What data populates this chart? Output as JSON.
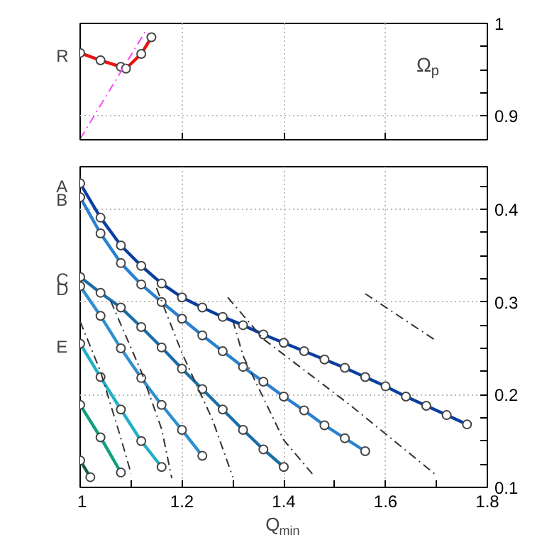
{
  "chart_data": [
    {
      "type": "line",
      "ylabel": "Ω$_{p}$",
      "xlim": [
        1,
        1.8
      ],
      "ylim": [
        0.874,
        1.0
      ],
      "xticks": [
        1,
        1.2,
        1.4,
        1.6,
        1.8
      ],
      "yticks": [
        0.9,
        {
          "value": 0.925,
          "label": null
        },
        {
          "value": 0.95,
          "label": null
        },
        {
          "value": 0.975,
          "label": null
        },
        1
      ],
      "tick_labels": "y",
      "grid": true,
      "annotations": [
        "R"
      ],
      "series": [
        {
          "color": "#ee1111",
          "marker": "circle",
          "line_style": "solid",
          "x": [
            1.0,
            1.04,
            1.08,
            1.09,
            1.12,
            1.14
          ],
          "values": [
            0.968,
            0.96,
            0.953,
            0.951,
            0.967,
            0.985
          ]
        },
        {
          "color": "#ff44ff",
          "marker": "none",
          "line_style": "dashed",
          "x": [
            1.0,
            1.13
          ],
          "values": [
            0.875,
            0.993
          ]
        }
      ]
    },
    {
      "type": "line",
      "xlabel": "Q$_{min}$",
      "xlim": [
        1,
        1.8
      ],
      "ylim": [
        0.1,
        0.446
      ],
      "xticks": [
        1,
        {
          "value": 1.1,
          "label": null
        },
        1.2,
        {
          "value": 1.3,
          "label": null
        },
        1.4,
        {
          "value": 1.5,
          "label": null
        },
        1.6,
        {
          "value": 1.7,
          "label": null
        },
        1.8
      ],
      "yticks": [
        0.1,
        {
          "value": 0.125,
          "label": null
        },
        {
          "value": 0.15,
          "label": null
        },
        {
          "value": 0.175,
          "label": null
        },
        0.2,
        {
          "value": 0.225,
          "label": null
        },
        {
          "value": 0.25,
          "label": null
        },
        {
          "value": 0.275,
          "label": null
        },
        0.3,
        {
          "value": 0.325,
          "label": null
        },
        {
          "value": 0.35,
          "label": null
        },
        {
          "value": 0.375,
          "label": null
        },
        0.4,
        {
          "value": 0.425,
          "label": null
        }
      ],
      "grid": true,
      "annotations": [
        "A",
        "B",
        "C",
        "D",
        "E"
      ],
      "series": [
        {
          "color": "#0a3fa0",
          "marker": "circle",
          "line_style": "solid",
          "x": [
            1.0,
            1.04,
            1.08,
            1.12,
            1.16,
            1.2,
            1.24,
            1.28,
            1.32,
            1.36,
            1.4,
            1.44,
            1.48,
            1.52,
            1.56,
            1.6,
            1.64,
            1.68,
            1.72,
            1.76
          ],
          "values": [
            0.428,
            0.391,
            0.361,
            0.339,
            0.32,
            0.305,
            0.294,
            0.284,
            0.275,
            0.265,
            0.256,
            0.247,
            0.238,
            0.229,
            0.219,
            0.209,
            0.198,
            0.188,
            0.178,
            0.168
          ]
        },
        {
          "color": "#2a80d0",
          "marker": "circle",
          "line_style": "solid",
          "x": [
            1.0,
            1.04,
            1.08,
            1.12,
            1.16,
            1.2,
            1.24,
            1.28,
            1.32,
            1.36,
            1.4,
            1.44,
            1.48,
            1.52,
            1.56
          ],
          "values": [
            0.413,
            0.374,
            0.342,
            0.319,
            0.3,
            0.282,
            0.264,
            0.247,
            0.23,
            0.214,
            0.198,
            0.183,
            0.167,
            0.153,
            0.139
          ]
        },
        {
          "color": "#1a6ea8",
          "marker": "circle",
          "line_style": "solid",
          "x": [
            1.0,
            1.04,
            1.08,
            1.12,
            1.16,
            1.2,
            1.24,
            1.28,
            1.32,
            1.36,
            1.4
          ],
          "values": [
            0.327,
            0.31,
            0.294,
            0.273,
            0.251,
            0.228,
            0.206,
            0.184,
            0.162,
            0.141,
            0.122
          ]
        },
        {
          "color": "#3090d0",
          "marker": "circle",
          "line_style": "solid",
          "x": [
            1.0,
            1.04,
            1.08,
            1.12,
            1.16,
            1.2,
            1.24
          ],
          "values": [
            0.317,
            0.285,
            0.25,
            0.218,
            0.189,
            0.162,
            0.134
          ]
        },
        {
          "color": "#20b0c8",
          "marker": "circle",
          "line_style": "solid",
          "x": [
            1.0,
            1.04,
            1.08,
            1.12,
            1.16
          ],
          "values": [
            0.255,
            0.219,
            0.184,
            0.15,
            0.122
          ]
        },
        {
          "color": "#10a080",
          "marker": "circle",
          "line_style": "solid",
          "x": [
            1.0,
            1.04,
            1.08
          ],
          "values": [
            0.189,
            0.154,
            0.116
          ]
        },
        {
          "color": "#106040",
          "marker": "circle",
          "line_style": "solid",
          "x": [
            1.0,
            1.02
          ],
          "values": [
            0.129,
            0.111
          ]
        },
        {
          "color": "#333333",
          "marker": "none",
          "line_style": "dashed",
          "x": [
            1.0,
            1.04,
            1.08,
            1.1
          ],
          "values": [
            0.279,
            0.225,
            0.153,
            0.115
          ]
        },
        {
          "color": "#333333",
          "marker": "none",
          "line_style": "dashed",
          "x": [
            1.06,
            1.12,
            1.16,
            1.18
          ],
          "values": [
            0.301,
            0.225,
            0.163,
            0.11
          ]
        },
        {
          "color": "#333333",
          "marker": "none",
          "line_style": "dashed",
          "x": [
            1.15,
            1.2,
            1.26,
            1.3
          ],
          "values": [
            0.315,
            0.245,
            0.173,
            0.111
          ]
        },
        {
          "color": "#333333",
          "marker": "none",
          "line_style": "dashed",
          "x": [
            1.3,
            1.32,
            1.4,
            1.46
          ],
          "values": [
            0.28,
            0.242,
            0.151,
            0.112
          ]
        },
        {
          "color": "#333333",
          "marker": "none",
          "line_style": "dashed",
          "x": [
            1.29,
            1.36,
            1.53,
            1.7
          ],
          "values": [
            0.305,
            0.26,
            0.189,
            0.113
          ]
        },
        {
          "color": "#333333",
          "marker": "none",
          "line_style": "dashed",
          "x": [
            1.56,
            1.7
          ],
          "values": [
            0.309,
            0.258
          ]
        }
      ]
    }
  ]
}
